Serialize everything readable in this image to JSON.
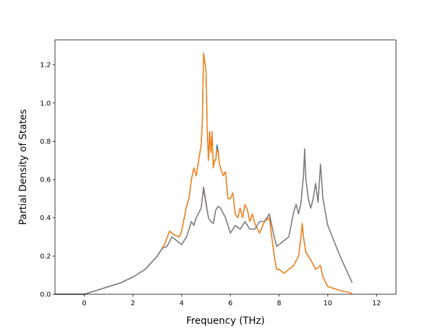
{
  "chart_data": {
    "type": "line",
    "title": "",
    "xlabel": "Frequency (THz)",
    "ylabel": "Partial Density of States",
    "xlim": [
      -1.2,
      12.8
    ],
    "ylim": [
      0,
      1.33
    ],
    "xticks": [
      0,
      2,
      4,
      6,
      8,
      10,
      12
    ],
    "yticks": [
      0.0,
      0.2,
      0.4,
      0.6,
      0.8,
      1.0,
      1.2
    ],
    "xtick_labels": [
      "0",
      "2",
      "4",
      "6",
      "8",
      "10",
      "12"
    ],
    "ytick_labels": [
      "0.0",
      "0.2",
      "0.4",
      "0.6",
      "0.8",
      "1.0",
      "1.2"
    ],
    "grid": false,
    "legend": "none",
    "series": [
      {
        "color": "#1f77b4",
        "x": [
          -1.2,
          0,
          0.5,
          1,
          1.5,
          2,
          2.5,
          3,
          3.3,
          3.5,
          3.7,
          3.9,
          4.0,
          4.2,
          4.3,
          4.4,
          4.5,
          4.6,
          4.7,
          4.8,
          4.85,
          4.9,
          5.0,
          5.05,
          5.1,
          5.15,
          5.2,
          5.25,
          5.3,
          5.35,
          5.4,
          5.45,
          5.5,
          5.55,
          5.6,
          5.7,
          5.8,
          5.9,
          6.0,
          6.1,
          6.2,
          6.3,
          6.4,
          6.5,
          6.6,
          6.7,
          6.8,
          6.9,
          7.0,
          7.2,
          7.4,
          7.6,
          7.8,
          7.9,
          8.0,
          8.2,
          8.4,
          8.6,
          8.8,
          8.9,
          8.95,
          9.0,
          9.1,
          9.3,
          9.5,
          9.7,
          9.8,
          10.0,
          10.5,
          11.0
        ],
        "y": [
          0,
          0,
          0.02,
          0.04,
          0.06,
          0.09,
          0.13,
          0.2,
          0.26,
          0.33,
          0.31,
          0.3,
          0.33,
          0.46,
          0.5,
          0.6,
          0.66,
          0.62,
          0.7,
          0.78,
          0.9,
          1.26,
          1.17,
          0.86,
          0.7,
          0.85,
          0.74,
          0.85,
          0.66,
          0.7,
          0.7,
          0.78,
          0.75,
          0.68,
          0.66,
          0.62,
          0.64,
          0.5,
          0.5,
          0.53,
          0.42,
          0.4,
          0.45,
          0.4,
          0.47,
          0.44,
          0.38,
          0.42,
          0.37,
          0.32,
          0.38,
          0.4,
          0.2,
          0.13,
          0.13,
          0.11,
          0.13,
          0.15,
          0.2,
          0.3,
          0.37,
          0.3,
          0.22,
          0.18,
          0.13,
          0.15,
          0.09,
          0.04,
          0.02,
          0.005
        ]
      },
      {
        "color": "#ff7f0e",
        "x": [
          -1.2,
          0,
          0.5,
          1,
          1.5,
          2,
          2.5,
          3,
          3.3,
          3.5,
          3.7,
          3.9,
          4.0,
          4.2,
          4.3,
          4.4,
          4.5,
          4.6,
          4.7,
          4.8,
          4.85,
          4.9,
          5.0,
          5.05,
          5.1,
          5.15,
          5.2,
          5.25,
          5.3,
          5.35,
          5.4,
          5.45,
          5.5,
          5.55,
          5.6,
          5.7,
          5.8,
          5.9,
          6.0,
          6.1,
          6.2,
          6.3,
          6.4,
          6.5,
          6.6,
          6.7,
          6.8,
          6.9,
          7.0,
          7.2,
          7.4,
          7.6,
          7.8,
          7.9,
          8.0,
          8.2,
          8.4,
          8.6,
          8.8,
          8.9,
          8.95,
          9.0,
          9.1,
          9.3,
          9.5,
          9.7,
          9.8,
          10.0,
          10.5,
          11.0
        ],
        "y": [
          0,
          0,
          0.02,
          0.04,
          0.06,
          0.09,
          0.13,
          0.2,
          0.26,
          0.33,
          0.31,
          0.3,
          0.33,
          0.46,
          0.5,
          0.6,
          0.66,
          0.62,
          0.7,
          0.78,
          0.9,
          1.26,
          1.17,
          0.86,
          0.7,
          0.85,
          0.74,
          0.85,
          0.66,
          0.7,
          0.7,
          0.76,
          0.74,
          0.68,
          0.66,
          0.62,
          0.64,
          0.5,
          0.5,
          0.53,
          0.42,
          0.4,
          0.45,
          0.4,
          0.47,
          0.44,
          0.38,
          0.42,
          0.37,
          0.32,
          0.38,
          0.4,
          0.2,
          0.13,
          0.13,
          0.11,
          0.13,
          0.15,
          0.2,
          0.3,
          0.37,
          0.3,
          0.22,
          0.18,
          0.13,
          0.15,
          0.09,
          0.04,
          0.02,
          0.005
        ]
      },
      {
        "color": "#8c564b",
        "x": [
          -1.2,
          0,
          0.5,
          1,
          1.5,
          2,
          2.5,
          3,
          3.2,
          3.4,
          3.6,
          3.8,
          4.0,
          4.2,
          4.4,
          4.5,
          4.6,
          4.8,
          4.9,
          5.0,
          5.1,
          5.2,
          5.3,
          5.4,
          5.5,
          5.6,
          5.8,
          6.0,
          6.2,
          6.4,
          6.6,
          6.8,
          7.0,
          7.2,
          7.4,
          7.6,
          7.8,
          7.9,
          8.0,
          8.2,
          8.4,
          8.6,
          8.7,
          8.8,
          8.9,
          9.0,
          9.05,
          9.1,
          9.2,
          9.3,
          9.4,
          9.5,
          9.6,
          9.7,
          9.8,
          10.0,
          10.5,
          11.0
        ],
        "y": [
          0,
          0,
          0.02,
          0.04,
          0.06,
          0.09,
          0.13,
          0.2,
          0.24,
          0.25,
          0.3,
          0.28,
          0.26,
          0.3,
          0.38,
          0.36,
          0.4,
          0.45,
          0.56,
          0.48,
          0.4,
          0.38,
          0.37,
          0.44,
          0.46,
          0.45,
          0.4,
          0.32,
          0.36,
          0.34,
          0.38,
          0.34,
          0.34,
          0.38,
          0.38,
          0.42,
          0.3,
          0.25,
          0.26,
          0.28,
          0.3,
          0.43,
          0.47,
          0.42,
          0.48,
          0.62,
          0.76,
          0.6,
          0.5,
          0.45,
          0.5,
          0.58,
          0.48,
          0.68,
          0.5,
          0.36,
          0.2,
          0.06
        ]
      },
      {
        "color": "#7f7f7f",
        "x": [
          -1.2,
          0,
          0.5,
          1,
          1.5,
          2,
          2.5,
          3,
          3.2,
          3.4,
          3.6,
          3.8,
          4.0,
          4.2,
          4.4,
          4.5,
          4.6,
          4.8,
          4.9,
          5.0,
          5.1,
          5.2,
          5.3,
          5.4,
          5.5,
          5.6,
          5.8,
          6.0,
          6.2,
          6.4,
          6.6,
          6.8,
          7.0,
          7.2,
          7.4,
          7.6,
          7.8,
          7.9,
          8.0,
          8.2,
          8.4,
          8.6,
          8.7,
          8.8,
          8.9,
          9.0,
          9.05,
          9.1,
          9.2,
          9.3,
          9.4,
          9.5,
          9.6,
          9.7,
          9.8,
          10.0,
          10.5,
          11.0
        ],
        "y": [
          0,
          0,
          0.02,
          0.04,
          0.06,
          0.09,
          0.13,
          0.2,
          0.24,
          0.25,
          0.3,
          0.28,
          0.26,
          0.3,
          0.38,
          0.36,
          0.4,
          0.45,
          0.55,
          0.47,
          0.4,
          0.38,
          0.37,
          0.44,
          0.46,
          0.45,
          0.4,
          0.32,
          0.36,
          0.34,
          0.38,
          0.34,
          0.34,
          0.38,
          0.38,
          0.42,
          0.3,
          0.25,
          0.26,
          0.28,
          0.3,
          0.43,
          0.47,
          0.42,
          0.48,
          0.62,
          0.75,
          0.6,
          0.5,
          0.45,
          0.5,
          0.58,
          0.48,
          0.68,
          0.5,
          0.36,
          0.2,
          0.06
        ]
      }
    ]
  }
}
